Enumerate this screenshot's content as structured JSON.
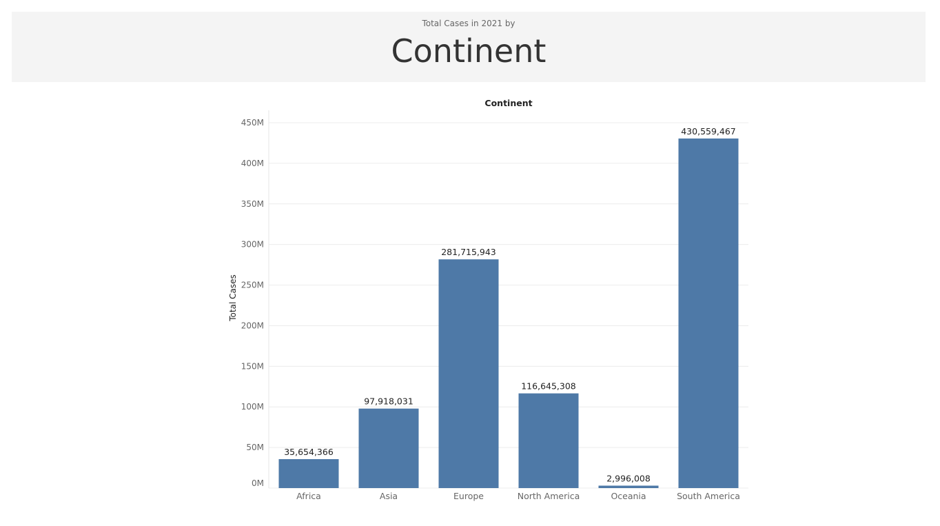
{
  "header": {
    "subtitle": "Total Cases in 2021 by",
    "title": "Continent"
  },
  "chart_data": {
    "type": "bar",
    "title": "Continent",
    "xlabel": "",
    "ylabel": "Total Cases",
    "categories": [
      "Africa",
      "Asia",
      "Europe",
      "North America",
      "Oceania",
      "South America"
    ],
    "values": [
      35654366,
      97918031,
      281715943,
      116645308,
      2996008,
      430559467
    ],
    "value_labels": [
      "35,654,366",
      "97,918,031",
      "281,715,943",
      "116,645,308",
      "2,996,008",
      "430,559,467"
    ],
    "ylim": [
      0,
      450000000
    ],
    "yticks": [
      0,
      50000000,
      100000000,
      150000000,
      200000000,
      250000000,
      300000000,
      350000000,
      400000000,
      450000000
    ],
    "ytick_labels": [
      "0M",
      "50M",
      "100M",
      "150M",
      "200M",
      "250M",
      "300M",
      "350M",
      "400M",
      "450M"
    ],
    "grid": true,
    "legend": "none",
    "colors": {
      "bar": "#4e79a7",
      "grid": "#ececec",
      "axis_text": "#666666",
      "label_text": "#222222"
    }
  }
}
